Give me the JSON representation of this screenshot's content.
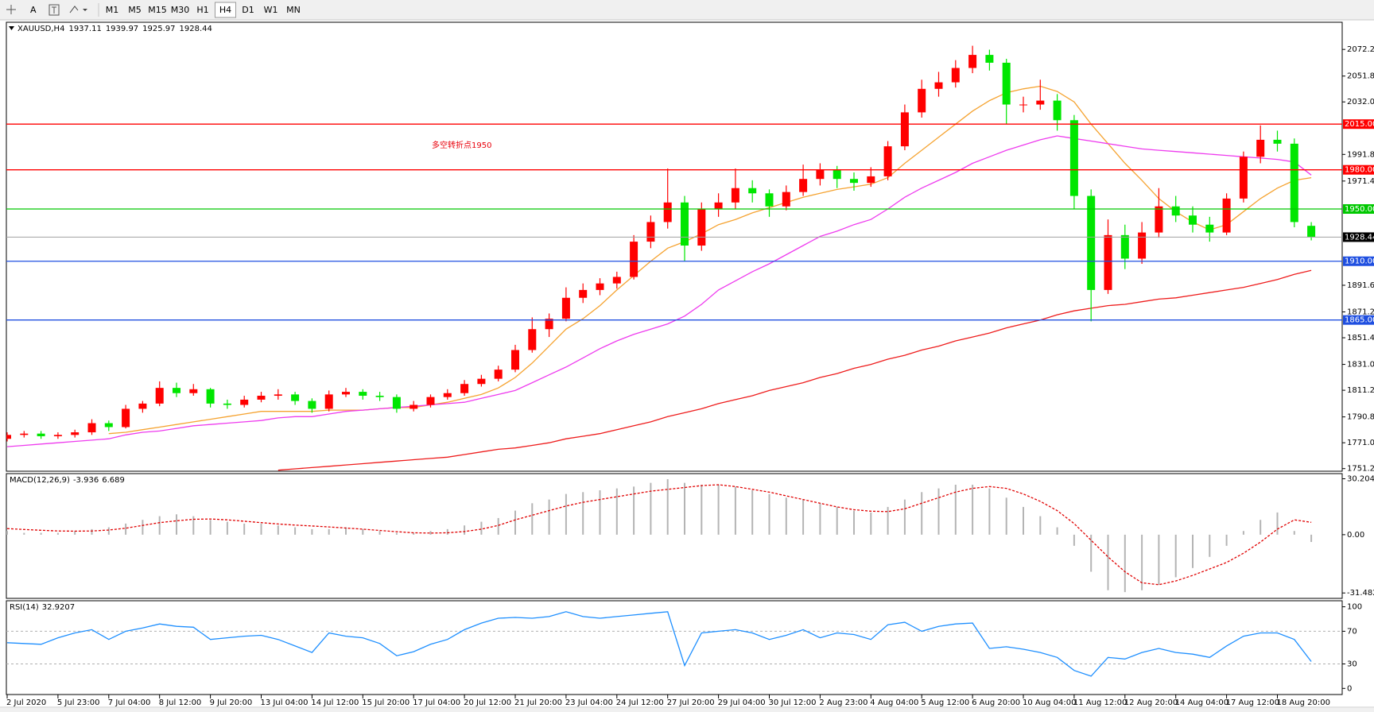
{
  "toolbar": {
    "text_tool": "A",
    "timeframes": [
      {
        "label": "M1"
      },
      {
        "label": "M5"
      },
      {
        "label": "M15"
      },
      {
        "label": "M30"
      },
      {
        "label": "H1"
      },
      {
        "label": "H4",
        "active": true
      },
      {
        "label": "D1"
      },
      {
        "label": "W1"
      },
      {
        "label": "MN"
      }
    ]
  },
  "chart_data": [
    {
      "type": "candlestick",
      "symbol": "XAUUSD,H4",
      "annotation": "多空转折点1950",
      "annotation_color": "#e8000b",
      "up_color": "#ff0000",
      "down_color": "#00e600",
      "last_price_color": "#a0a0a0",
      "ylim": [
        1749.2,
        2093
      ],
      "yticks": [
        {
          "value": 2072.2,
          "label": "2072.20"
        },
        {
          "value": 2051.8,
          "label": "2051.80"
        },
        {
          "value": 2032,
          "label": "2032.00"
        },
        {
          "value": 1991.8,
          "label": "1991.80"
        },
        {
          "value": 1971.4,
          "label": "1971.40"
        },
        {
          "value": 1891.6,
          "label": "1891.60"
        },
        {
          "value": 1871.2,
          "label": "1871.20"
        },
        {
          "value": 1851.4,
          "label": "1851.40"
        },
        {
          "value": 1831,
          "label": "1831.00"
        },
        {
          "value": 1811.2,
          "label": "1811.20"
        },
        {
          "value": 1790.8,
          "label": "1790.80"
        },
        {
          "value": 1771,
          "label": "1771.00"
        },
        {
          "value": 1751.2,
          "label": "1751.20"
        }
      ],
      "levels": [
        {
          "value": 2015,
          "label": "2015.00",
          "color": "#ff0000"
        },
        {
          "value": 1980,
          "label": "1980.00",
          "color": "#ff0000"
        },
        {
          "value": 1950,
          "label": "1950.00",
          "color": "#00c800"
        },
        {
          "value": 1910,
          "label": "1910.00",
          "color": "#1f4fe0"
        },
        {
          "value": 1865,
          "label": "1865.00",
          "color": "#1f4fe0"
        }
      ],
      "categories": [
        "2 Jul 2020",
        null,
        null,
        "5 Jul 23:00",
        null,
        null,
        "7 Jul 04:00",
        null,
        null,
        "8 Jul 12:00",
        null,
        null,
        "9 Jul 20:00",
        null,
        null,
        "13 Jul 04:00",
        null,
        null,
        "14 Jul 12:00",
        null,
        null,
        "15 Jul 20:00",
        null,
        null,
        "17 Jul 04:00",
        null,
        null,
        "20 Jul 12:00",
        null,
        null,
        "21 Jul 20:00",
        null,
        null,
        "23 Jul 04:00",
        null,
        null,
        "24 Jul 12:00",
        null,
        null,
        "27 Jul 20:00",
        null,
        null,
        "29 Jul 04:00",
        null,
        null,
        "30 Jul 12:00",
        null,
        null,
        "2 Aug 23:00",
        null,
        null,
        "4 Aug 04:00",
        null,
        null,
        "5 Aug 12:00",
        null,
        null,
        "6 Aug 20:00",
        null,
        null,
        "10 Aug 04:00",
        null,
        null,
        "11 Aug 12:00",
        null,
        null,
        "12 Aug 20:00",
        null,
        null,
        "14 Aug 04:00",
        null,
        null,
        "17 Aug 12:00",
        null,
        null,
        "18 Aug 20:00",
        null,
        null
      ],
      "candles": [
        [
          1774,
          1779,
          1772,
          1777
        ],
        [
          1777,
          1780,
          1775,
          1778
        ],
        [
          1778,
          1780,
          1774,
          1776
        ],
        [
          1776,
          1779,
          1774,
          1777
        ],
        [
          1777,
          1781,
          1775,
          1779
        ],
        [
          1779,
          1789,
          1777,
          1786
        ],
        [
          1786,
          1788,
          1780,
          1783
        ],
        [
          1783,
          1800,
          1782,
          1797
        ],
        [
          1797,
          1803,
          1794,
          1801
        ],
        [
          1801,
          1818,
          1799,
          1813
        ],
        [
          1813,
          1817,
          1806,
          1809
        ],
        [
          1809,
          1816,
          1807,
          1812
        ],
        [
          1812,
          1813,
          1798,
          1801
        ],
        [
          1801,
          1804,
          1797,
          1800
        ],
        [
          1800,
          1807,
          1798,
          1804
        ],
        [
          1804,
          1810,
          1802,
          1807
        ],
        [
          1807,
          1812,
          1804,
          1808
        ],
        [
          1808,
          1810,
          1800,
          1803
        ],
        [
          1803,
          1805,
          1794,
          1797
        ],
        [
          1797,
          1811,
          1795,
          1808
        ],
        [
          1808,
          1813,
          1806,
          1810
        ],
        [
          1810,
          1812,
          1804,
          1807
        ],
        [
          1807,
          1810,
          1803,
          1806
        ],
        [
          1806,
          1808,
          1794,
          1797
        ],
        [
          1797,
          1803,
          1795,
          1800
        ],
        [
          1800,
          1808,
          1798,
          1806
        ],
        [
          1806,
          1812,
          1804,
          1809
        ],
        [
          1809,
          1819,
          1807,
          1816
        ],
        [
          1816,
          1823,
          1814,
          1820
        ],
        [
          1820,
          1830,
          1818,
          1827
        ],
        [
          1827,
          1846,
          1825,
          1842
        ],
        [
          1842,
          1867,
          1840,
          1858
        ],
        [
          1858,
          1870,
          1852,
          1866
        ],
        [
          1866,
          1890,
          1864,
          1882
        ],
        [
          1882,
          1893,
          1878,
          1888
        ],
        [
          1888,
          1897,
          1884,
          1893
        ],
        [
          1893,
          1902,
          1889,
          1898
        ],
        [
          1898,
          1930,
          1896,
          1925
        ],
        [
          1925,
          1945,
          1920,
          1940
        ],
        [
          1940,
          1981,
          1935,
          1955
        ],
        [
          1955,
          1960,
          1910,
          1922
        ],
        [
          1922,
          1955,
          1918,
          1950
        ],
        [
          1950,
          1962,
          1944,
          1955
        ],
        [
          1955,
          1981,
          1950,
          1966
        ],
        [
          1966,
          1972,
          1955,
          1962
        ],
        [
          1962,
          1965,
          1944,
          1952
        ],
        [
          1952,
          1968,
          1949,
          1963
        ],
        [
          1963,
          1984,
          1960,
          1973
        ],
        [
          1973,
          1985,
          1968,
          1980
        ],
        [
          1980,
          1983,
          1966,
          1973
        ],
        [
          1973,
          1978,
          1964,
          1970
        ],
        [
          1970,
          1982,
          1967,
          1975
        ],
        [
          1975,
          2002,
          1972,
          1998
        ],
        [
          1998,
          2030,
          1995,
          2024
        ],
        [
          2024,
          2049,
          2020,
          2042
        ],
        [
          2042,
          2055,
          2036,
          2047
        ],
        [
          2047,
          2064,
          2043,
          2058
        ],
        [
          2058,
          2075,
          2054,
          2068
        ],
        [
          2068,
          2072,
          2056,
          2062
        ],
        [
          2062,
          2065,
          2015,
          2030
        ],
        [
          2030,
          2036,
          2024,
          2030
        ],
        [
          2030,
          2049,
          2026,
          2033
        ],
        [
          2033,
          2038,
          2010,
          2018
        ],
        [
          2018,
          2022,
          1950,
          1960
        ],
        [
          1960,
          1965,
          1864,
          1888
        ],
        [
          1888,
          1942,
          1885,
          1930
        ],
        [
          1930,
          1938,
          1904,
          1912
        ],
        [
          1912,
          1940,
          1908,
          1932
        ],
        [
          1932,
          1966,
          1928,
          1952
        ],
        [
          1952,
          1960,
          1940,
          1945
        ],
        [
          1945,
          1952,
          1932,
          1938
        ],
        [
          1938,
          1944,
          1925,
          1932
        ],
        [
          1932,
          1962,
          1930,
          1958
        ],
        [
          1958,
          1994,
          1955,
          1990
        ],
        [
          1990,
          2014,
          1985,
          2003
        ],
        [
          2003,
          2010,
          1994,
          2000
        ],
        [
          2000,
          2004,
          1936,
          1940
        ],
        [
          1937.11,
          1939.97,
          1925.97,
          1928.44
        ]
      ],
      "lines": [
        {
          "color": "#f5a331",
          "values": [
            null,
            null,
            null,
            null,
            null,
            null,
            1778,
            1779,
            1781,
            1783,
            1785,
            1787,
            1789,
            1791,
            1793,
            1795,
            1795,
            1795,
            1795,
            1796,
            1796,
            1796,
            1797,
            1798,
            1798,
            1800,
            1802,
            1805,
            1808,
            1813,
            1821,
            1832,
            1845,
            1858,
            1866,
            1876,
            1888,
            1899,
            1910,
            1920,
            1925,
            1931,
            1938,
            1942,
            1947,
            1951,
            1955,
            1959,
            1962,
            1965,
            1967,
            1969,
            1974,
            1985,
            1995,
            2005,
            2015,
            2025,
            2033,
            2039,
            2042,
            2044,
            2040,
            2032,
            2015,
            2000,
            1985,
            1972,
            1958,
            1948,
            1940,
            1934,
            1938,
            1948,
            1958,
            1966,
            1972,
            1974
          ]
        },
        {
          "color": "#ee3bee",
          "values": [
            1768,
            1769,
            1770,
            1771,
            1772,
            1773,
            1774,
            1777,
            1779,
            1780,
            1782,
            1784,
            1785,
            1786,
            1787,
            1788,
            1790,
            1791,
            1791,
            1793,
            1795,
            1796,
            1797,
            1798,
            1799,
            1800,
            1801,
            1802,
            1805,
            1808,
            1811,
            1817,
            1823,
            1829,
            1836,
            1843,
            1849,
            1854,
            1858,
            1862,
            1868,
            1877,
            1888,
            1895,
            1902,
            1908,
            1915,
            1922,
            1929,
            1933,
            1938,
            1942,
            1950,
            1959,
            1966,
            1972,
            1978,
            1985,
            1990,
            1995,
            1999,
            2003,
            2006,
            2004,
            2002,
            2000,
            1998,
            1996,
            1995,
            1994,
            1993,
            1992,
            1991,
            1990,
            1989,
            1988,
            1986,
            1976
          ]
        },
        {
          "color": "#ee1c1c",
          "values": [
            null,
            null,
            null,
            null,
            null,
            null,
            null,
            null,
            null,
            null,
            null,
            null,
            null,
            null,
            null,
            null,
            1750,
            1751,
            1752,
            1753,
            1754,
            1755,
            1756,
            1757,
            1758,
            1759,
            1760,
            1762,
            1764,
            1766,
            1767,
            1769,
            1771,
            1774,
            1776,
            1778,
            1781,
            1784,
            1787,
            1791,
            1794,
            1797,
            1801,
            1804,
            1807,
            1811,
            1814,
            1817,
            1821,
            1824,
            1828,
            1831,
            1835,
            1838,
            1842,
            1845,
            1849,
            1852,
            1855,
            1859,
            1862,
            1865,
            1869,
            1872,
            1874,
            1876,
            1877,
            1879,
            1881,
            1882,
            1884,
            1886,
            1888,
            1890,
            1893,
            1896,
            1900,
            1903
          ]
        }
      ]
    },
    {
      "type": "macd",
      "title": "MACD(12,26,9)",
      "ylim": [
        -34.4,
        33
      ],
      "yticks": [
        30.204,
        {
          "value": 0,
          "label": "0.00"
        },
        -31.482
      ],
      "series": [
        {
          "color": "#b4b4b4",
          "values": [
            2,
            1,
            1,
            1,
            2,
            3,
            4,
            6,
            8,
            10,
            11,
            10,
            8,
            7,
            6,
            6,
            5,
            4,
            3,
            3,
            4,
            3,
            2,
            1,
            1,
            2,
            3,
            5,
            7,
            9,
            13,
            17,
            19,
            22,
            23,
            24,
            25,
            26,
            28,
            30,
            28,
            27,
            27,
            26,
            24,
            22,
            20,
            19,
            17,
            15,
            13,
            12,
            15,
            19,
            23,
            25,
            27,
            27,
            25,
            20,
            15,
            10,
            4,
            -6,
            -20,
            -30,
            -31,
            -30,
            -27,
            -23,
            -18,
            -12,
            -6,
            2,
            8,
            12,
            2,
            -3.936
          ]
        },
        {
          "color": "#e00000",
          "dashed": true,
          "values": [
            3.3,
            2.8,
            2.4,
            2,
            1.9,
            2,
            2.5,
            3.5,
            5,
            6.5,
            7.5,
            8.3,
            8.5,
            8,
            7.3,
            6.5,
            5.8,
            5.2,
            4.7,
            4.2,
            3.6,
            3,
            2.3,
            1.6,
            1,
            0.9,
            1,
            1.7,
            3,
            5,
            8,
            10.5,
            13,
            15.5,
            17.5,
            19,
            20.5,
            22,
            23.5,
            24.5,
            25.5,
            26.5,
            27,
            26,
            24.5,
            23,
            21,
            19,
            17,
            15,
            13.5,
            12.7,
            12.5,
            14,
            17,
            20,
            23,
            25,
            26,
            25,
            22,
            18,
            13,
            6,
            -3,
            -12,
            -20,
            -26,
            -27,
            -25,
            -22,
            -18.5,
            -15,
            -10,
            -4,
            3,
            8,
            6.689
          ]
        }
      ]
    },
    {
      "type": "rsi",
      "title": "RSI(14)",
      "ylim": [
        -7.5,
        107.4
      ],
      "yticks": [
        100,
        70,
        30,
        0
      ],
      "grid": [
        false,
        true,
        true,
        false
      ],
      "series": [
        {
          "color": "#1e8fff",
          "values": [
            56,
            55,
            54,
            62,
            68,
            72,
            60,
            70,
            74,
            79,
            76,
            75,
            60,
            62,
            64,
            65,
            60,
            52,
            44,
            68,
            64,
            62,
            55,
            40,
            45,
            54,
            60,
            72,
            80,
            86,
            87,
            86,
            88,
            94,
            88,
            86,
            88,
            90,
            92,
            94,
            28,
            68,
            70,
            72,
            68,
            60,
            65,
            72,
            62,
            68,
            66,
            60,
            78,
            81,
            70,
            76,
            79,
            80,
            49,
            51,
            48,
            44,
            38,
            22,
            15,
            38,
            36,
            44,
            49,
            44,
            42,
            38,
            52,
            64,
            68,
            68,
            60,
            32.9207
          ]
        }
      ]
    }
  ]
}
